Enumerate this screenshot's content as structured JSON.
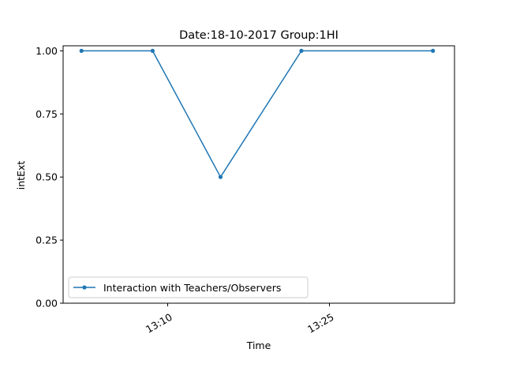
{
  "chart_data": {
    "type": "line",
    "title": "Date:18-10-2017  Group:1HI",
    "xlabel": "Time",
    "ylabel": "intExt",
    "x_unit": "minutes after 13:00",
    "xlim": [
      0.3,
      36.6
    ],
    "ylim": [
      0,
      1.02
    ],
    "x_ticks": [
      {
        "value": 10,
        "label": "13:10"
      },
      {
        "value": 25,
        "label": "13:25"
      }
    ],
    "y_ticks": [
      {
        "value": 0.0,
        "label": "0.00"
      },
      {
        "value": 0.25,
        "label": "0.25"
      },
      {
        "value": 0.5,
        "label": "0.50"
      },
      {
        "value": 0.75,
        "label": "0.75"
      },
      {
        "value": 1.0,
        "label": "1.00"
      }
    ],
    "series": [
      {
        "name": "Interaction with Teachers/Observers",
        "color": "#1f77b4",
        "x": [
          2.0,
          8.6,
          14.9,
          22.4,
          34.6
        ],
        "y": [
          1.0,
          1.0,
          0.5,
          1.0,
          1.0
        ]
      }
    ],
    "legend": {
      "position": "lower-left"
    },
    "grid": false
  }
}
